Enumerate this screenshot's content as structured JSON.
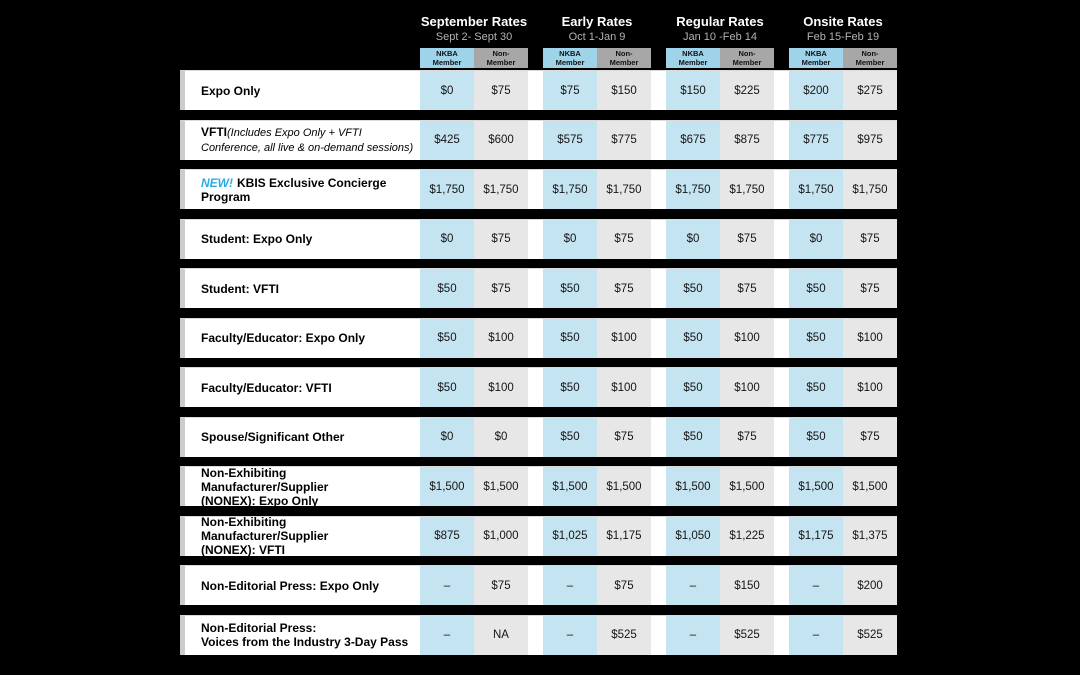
{
  "page": {
    "background": "#000000"
  },
  "colors": {
    "member_header_bg": "#9ED3EA",
    "nonmember_header_bg": "#A7A7A7",
    "member_cell_bg": "#C5E4F2",
    "nonmember_cell_bg": "#E7E7E7",
    "row_bg": "#FFFFFF",
    "row_edge": "#CCCCCC",
    "title_text": "#FFFFFF",
    "dates_text": "#B3B3B3",
    "new_label_color": "#29ABE2"
  },
  "header": {
    "rate_periods": [
      {
        "title": "September Rates",
        "dates": "Sept 2- Sept 30"
      },
      {
        "title": "Early Rates",
        "dates": "Oct 1-Jan 9"
      },
      {
        "title": "Regular Rates",
        "dates": "Jan 10 -Feb 14"
      },
      {
        "title": "Onsite Rates",
        "dates": "Feb 15-Feb 19"
      }
    ],
    "member_types": [
      {
        "line1": "NKBA",
        "line2": "Member"
      },
      {
        "line1": "Non-",
        "line2": "Member"
      }
    ]
  },
  "rows": [
    {
      "label": "Expo Only",
      "prices": [
        "$0",
        "$75",
        "$75",
        "$150",
        "$150",
        "$225",
        "$200",
        "$275"
      ]
    },
    {
      "label": "VFTI",
      "note": "(Includes Expo Only + VFTI Conference, all live & on-demand sessions)",
      "prices": [
        "$425",
        "$600",
        "$575",
        "$775",
        "$675",
        "$875",
        "$775",
        "$975"
      ]
    },
    {
      "prefix": "NEW!",
      "label": "KBIS Exclusive Concierge Program",
      "prices": [
        "$1,750",
        "$1,750",
        "$1,750",
        "$1,750",
        "$1,750",
        "$1,750",
        "$1,750",
        "$1,750"
      ]
    },
    {
      "label": "Student: Expo Only",
      "prices": [
        "$0",
        "$75",
        "$0",
        "$75",
        "$0",
        "$75",
        "$0",
        "$75"
      ]
    },
    {
      "label": "Student: VFTI",
      "prices": [
        "$50",
        "$75",
        "$50",
        "$75",
        "$50",
        "$75",
        "$50",
        "$75"
      ]
    },
    {
      "label": "Faculty/Educator: Expo Only",
      "prices": [
        "$50",
        "$100",
        "$50",
        "$100",
        "$50",
        "$100",
        "$50",
        "$100"
      ]
    },
    {
      "label": "Faculty/Educator: VFTI",
      "prices": [
        "$50",
        "$100",
        "$50",
        "$100",
        "$50",
        "$100",
        "$50",
        "$100"
      ]
    },
    {
      "label": "Spouse/Significant Other",
      "prices": [
        "$0",
        "$0",
        "$50",
        "$75",
        "$50",
        "$75",
        "$50",
        "$75"
      ]
    },
    {
      "label": "Non-Exhibiting Manufacturer/Supplier",
      "label2": "(NONEX): Expo Only",
      "prices": [
        "$1,500",
        "$1,500",
        "$1,500",
        "$1,500",
        "$1,500",
        "$1,500",
        "$1,500",
        "$1,500"
      ]
    },
    {
      "label": "Non-Exhibiting Manufacturer/Supplier",
      "label2": "(NONEX): VFTI",
      "prices": [
        "$875",
        "$1,000",
        "$1,025",
        "$1,175",
        "$1,050",
        "$1,225",
        "$1,175",
        "$1,375"
      ]
    },
    {
      "label": "Non-Editorial Press: Expo Only",
      "prices": [
        "–",
        "$75",
        "–",
        "$75",
        "–",
        "$150",
        "–",
        "$200"
      ]
    },
    {
      "label": "Non-Editorial Press:",
      "label2": "Voices from the Industry 3-Day Pass",
      "prices": [
        "–",
        "NA",
        "–",
        "$525",
        "–",
        "$525",
        "–",
        "$525"
      ]
    }
  ]
}
